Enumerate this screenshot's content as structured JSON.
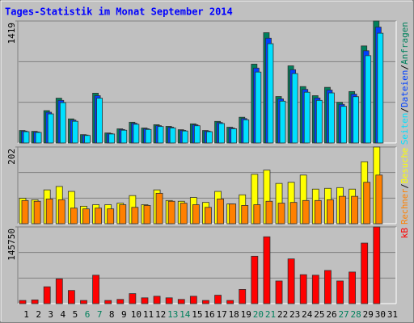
{
  "chart_data": {
    "type": "bar",
    "title": "Tages-Statistik im Monat September 2014",
    "categories": [
      "1",
      "2",
      "3",
      "4",
      "5",
      "6",
      "7",
      "8",
      "9",
      "10",
      "11",
      "12",
      "13",
      "14",
      "15",
      "16",
      "17",
      "18",
      "19",
      "20",
      "21",
      "22",
      "23",
      "24",
      "25",
      "26",
      "27",
      "28",
      "29",
      "30",
      "31"
    ],
    "category_colors": [
      "#000000",
      "#000000",
      "#000000",
      "#000000",
      "#000000",
      "#00805c",
      "#00805c",
      "#000000",
      "#000000",
      "#000000",
      "#000000",
      "#000000",
      "#00805c",
      "#00805c",
      "#000000",
      "#000000",
      "#000000",
      "#000000",
      "#000000",
      "#00805c",
      "#00805c",
      "#000000",
      "#000000",
      "#000000",
      "#000000",
      "#000000",
      "#00805c",
      "#00805c",
      "#000000",
      "#000000",
      "#000000"
    ],
    "legend_separator": "/",
    "panels": [
      {
        "ylim": [
          0,
          1419
        ],
        "yticks": [
          1419
        ],
        "series": [
          {
            "name": "Anfragen",
            "color": "#00805c",
            "values": [
              145,
              135,
              376,
              521,
              280,
              97,
              579,
              116,
              164,
              241,
              174,
              212,
              193,
              154,
              222,
              145,
              251,
              183,
              299,
              917,
              1283,
              540,
              897,
              656,
              550,
              647,
              473,
              598,
              1129,
              1419,
              null
            ]
          },
          {
            "name": "Dateien",
            "color": "#0040ff",
            "values": [
              138,
              128,
              357,
              495,
              266,
              92,
              550,
              110,
              156,
              229,
              165,
              201,
              183,
              146,
              211,
              138,
              238,
              174,
              284,
              871,
              1219,
              513,
              852,
              623,
              523,
              615,
              449,
              568,
              1073,
              1348,
              null
            ]
          },
          {
            "name": "Seiten",
            "color": "#00e0ff",
            "values": [
              131,
              122,
              338,
              469,
              252,
              87,
              521,
              104,
              148,
              217,
              157,
              191,
              174,
              139,
              200,
              131,
              226,
              165,
              269,
              825,
              1155,
              486,
              807,
              590,
              495,
              582,
              426,
              538,
              1016,
              1277,
              null
            ]
          }
        ]
      },
      {
        "ylim": [
          0,
          202
        ],
        "yticks": [
          202
        ],
        "series": [
          {
            "name": "Besuche",
            "color": "#ffff00",
            "values": [
              67,
              63,
              89,
              98,
              85,
              46,
              50,
              50,
              54,
              74,
              50,
              89,
              61,
              59,
              69,
              56,
              85,
              52,
              76,
              130,
              141,
              106,
              109,
              128,
              91,
              93,
              95,
              91,
              163,
              202,
              null
            ]
          },
          {
            "name": "Rechner",
            "color": "#ff8000",
            "values": [
              61,
              59,
              65,
              63,
              41,
              39,
              41,
              39,
              50,
              43,
              48,
              80,
              59,
              54,
              50,
              43,
              65,
              52,
              48,
              50,
              59,
              54,
              56,
              61,
              61,
              63,
              72,
              72,
              109,
              128,
              null
            ]
          }
        ]
      },
      {
        "ylim": [
          0,
          145750
        ],
        "yticks": [
          145750
        ],
        "series": [
          {
            "name": "kB",
            "color": "#ff0000",
            "values": [
              6000,
              7000,
              32000,
              47000,
              25000,
              6000,
              54000,
              6000,
              8000,
              19000,
              11000,
              14000,
              11000,
              8000,
              14000,
              6000,
              16000,
              6000,
              27000,
              90000,
              127000,
              43000,
              85000,
              55000,
              54000,
              63000,
              43000,
              60000,
              115000,
              145750,
              null
            ]
          }
        ]
      }
    ]
  }
}
